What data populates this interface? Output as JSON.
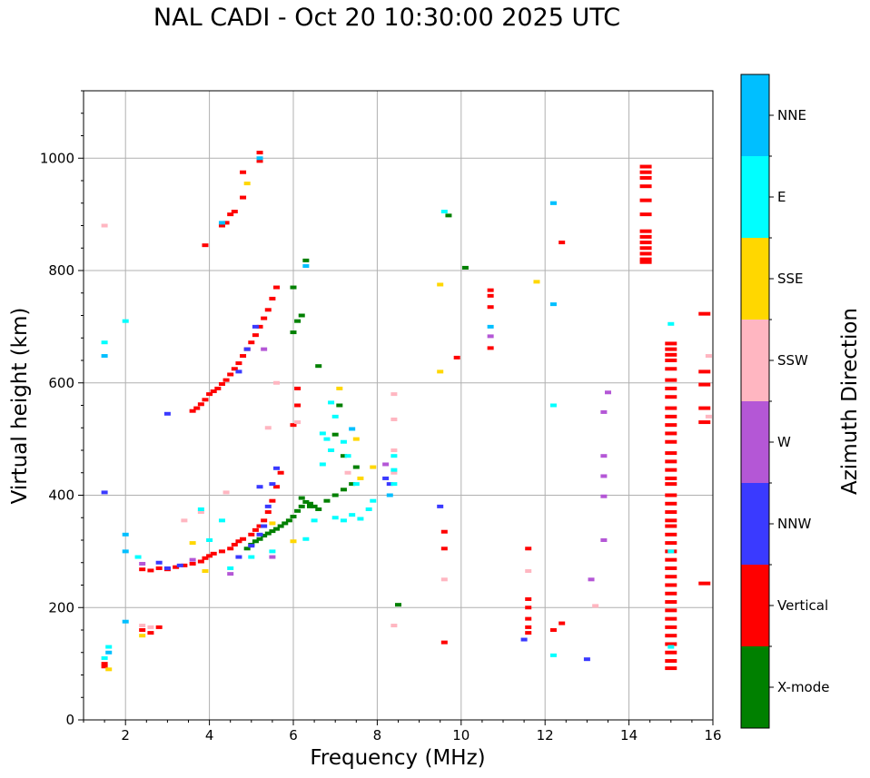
{
  "chart_data": {
    "type": "scatter",
    "title": "NAL CADI - Oct 20 10:30:00 2025 UTC",
    "xlabel": "Frequency (MHz)",
    "ylabel": "Virtual height (km)",
    "xlim": [
      1,
      16
    ],
    "ylim": [
      0,
      1120
    ],
    "x_ticks": [
      2,
      4,
      6,
      8,
      10,
      12,
      14,
      16
    ],
    "y_ticks": [
      0,
      200,
      400,
      600,
      800,
      1000
    ],
    "grid": true,
    "colorbar": {
      "label": "Azimuth Direction",
      "position": "right",
      "categories": [
        "X-mode",
        "Vertical",
        "NNW",
        "W",
        "SSW",
        "SSE",
        "E",
        "NNE"
      ],
      "colors": [
        "#008000",
        "#ff0000",
        "#3a3aff",
        "#b457d6",
        "#ffb6c1",
        "#ffd700",
        "#00ffff",
        "#00bfff"
      ]
    },
    "series": [
      {
        "name": "Vertical",
        "color": "#ff0000",
        "points": [
          [
            2.4,
            268
          ],
          [
            2.6,
            266
          ],
          [
            2.8,
            270
          ],
          [
            3.0,
            268
          ],
          [
            3.2,
            272
          ],
          [
            3.4,
            275
          ],
          [
            3.6,
            278
          ],
          [
            3.8,
            282
          ],
          [
            3.9,
            288
          ],
          [
            4.0,
            292
          ],
          [
            4.1,
            296
          ],
          [
            4.3,
            300
          ],
          [
            4.5,
            305
          ],
          [
            4.6,
            312
          ],
          [
            4.7,
            318
          ],
          [
            4.8,
            322
          ],
          [
            5.0,
            330
          ],
          [
            5.1,
            338
          ],
          [
            5.2,
            345
          ],
          [
            5.3,
            355
          ],
          [
            5.4,
            370
          ],
          [
            5.5,
            390
          ],
          [
            5.6,
            415
          ],
          [
            5.7,
            440
          ],
          [
            3.6,
            550
          ],
          [
            3.7,
            555
          ],
          [
            3.8,
            562
          ],
          [
            3.9,
            570
          ],
          [
            4.0,
            580
          ],
          [
            4.1,
            585
          ],
          [
            4.2,
            590
          ],
          [
            4.3,
            598
          ],
          [
            4.4,
            605
          ],
          [
            4.5,
            615
          ],
          [
            4.6,
            625
          ],
          [
            4.7,
            635
          ],
          [
            4.8,
            648
          ],
          [
            4.9,
            660
          ],
          [
            5.0,
            672
          ],
          [
            5.1,
            685
          ],
          [
            5.2,
            700
          ],
          [
            5.3,
            715
          ],
          [
            5.4,
            730
          ],
          [
            5.5,
            750
          ],
          [
            5.6,
            770
          ],
          [
            3.9,
            845
          ],
          [
            4.3,
            880
          ],
          [
            4.4,
            885
          ],
          [
            4.5,
            900
          ],
          [
            4.6,
            905
          ],
          [
            4.8,
            930
          ],
          [
            4.8,
            975
          ],
          [
            5.2,
            995
          ],
          [
            5.2,
            1010
          ],
          [
            1.5,
            100
          ],
          [
            1.5,
            95
          ],
          [
            2.4,
            160
          ],
          [
            2.6,
            155
          ],
          [
            2.8,
            165
          ],
          [
            11.6,
            305
          ],
          [
            11.6,
            215
          ],
          [
            11.6,
            200
          ],
          [
            11.6,
            180
          ],
          [
            11.6,
            165
          ],
          [
            11.6,
            155
          ],
          [
            12.2,
            160
          ],
          [
            12.4,
            172
          ],
          [
            10.7,
            765
          ],
          [
            10.7,
            755
          ],
          [
            10.7,
            735
          ],
          [
            10.7,
            662
          ],
          [
            9.6,
            335
          ],
          [
            9.6,
            305
          ],
          [
            9.6,
            138
          ],
          [
            9.9,
            645
          ],
          [
            12.4,
            850
          ],
          [
            6.1,
            590
          ],
          [
            6.1,
            560
          ],
          [
            6.0,
            525
          ],
          [
            14.4,
            985
          ],
          [
            14.4,
            975
          ],
          [
            14.4,
            965
          ],
          [
            14.4,
            950
          ],
          [
            14.4,
            925
          ],
          [
            14.4,
            900
          ],
          [
            14.4,
            870
          ],
          [
            14.4,
            860
          ],
          [
            14.4,
            850
          ],
          [
            14.4,
            840
          ],
          [
            14.4,
            830
          ],
          [
            14.4,
            820
          ],
          [
            14.4,
            815
          ],
          [
            15.0,
            670
          ],
          [
            15.0,
            660
          ],
          [
            15.0,
            650
          ],
          [
            15.0,
            640
          ],
          [
            15.0,
            625
          ],
          [
            15.0,
            605
          ],
          [
            15.0,
            590
          ],
          [
            15.0,
            575
          ],
          [
            15.0,
            555
          ],
          [
            15.0,
            540
          ],
          [
            15.0,
            525
          ],
          [
            15.0,
            510
          ],
          [
            15.0,
            495
          ],
          [
            15.0,
            475
          ],
          [
            15.0,
            460
          ],
          [
            15.0,
            445
          ],
          [
            15.0,
            430
          ],
          [
            15.0,
            420
          ],
          [
            15.0,
            400
          ],
          [
            15.0,
            385
          ],
          [
            15.0,
            370
          ],
          [
            15.0,
            355
          ],
          [
            15.0,
            345
          ],
          [
            15.0,
            330
          ],
          [
            15.0,
            315
          ],
          [
            15.0,
            300
          ],
          [
            15.0,
            285
          ],
          [
            15.0,
            270
          ],
          [
            15.0,
            255
          ],
          [
            15.0,
            240
          ],
          [
            15.0,
            225
          ],
          [
            15.0,
            210
          ],
          [
            15.0,
            195
          ],
          [
            15.0,
            180
          ],
          [
            15.0,
            165
          ],
          [
            15.0,
            150
          ],
          [
            15.0,
            135
          ],
          [
            15.0,
            120
          ],
          [
            15.0,
            105
          ],
          [
            15.0,
            92
          ],
          [
            15.8,
            723
          ],
          [
            15.8,
            620
          ],
          [
            15.8,
            597
          ],
          [
            15.8,
            555
          ],
          [
            15.8,
            530
          ],
          [
            15.8,
            243
          ]
        ]
      },
      {
        "name": "X-mode",
        "color": "#008000",
        "points": [
          [
            4.9,
            305
          ],
          [
            5.0,
            312
          ],
          [
            5.1,
            318
          ],
          [
            5.2,
            322
          ],
          [
            5.3,
            328
          ],
          [
            5.4,
            332
          ],
          [
            5.5,
            336
          ],
          [
            5.6,
            340
          ],
          [
            5.7,
            345
          ],
          [
            5.8,
            350
          ],
          [
            5.9,
            355
          ],
          [
            6.0,
            362
          ],
          [
            6.1,
            372
          ],
          [
            6.2,
            380
          ],
          [
            6.3,
            388
          ],
          [
            6.4,
            385
          ],
          [
            6.5,
            380
          ],
          [
            6.6,
            375
          ],
          [
            6.8,
            390
          ],
          [
            7.0,
            400
          ],
          [
            7.2,
            410
          ],
          [
            7.4,
            420
          ],
          [
            6.0,
            690
          ],
          [
            6.1,
            710
          ],
          [
            6.2,
            720
          ],
          [
            6.0,
            770
          ],
          [
            6.3,
            818
          ],
          [
            6.6,
            630
          ],
          [
            7.0,
            508
          ],
          [
            7.2,
            470
          ],
          [
            7.5,
            450
          ],
          [
            7.1,
            560
          ],
          [
            8.5,
            205
          ],
          [
            9.7,
            898
          ],
          [
            10.1,
            805
          ],
          [
            6.4,
            380
          ],
          [
            6.2,
            395
          ]
        ]
      },
      {
        "name": "NNW",
        "color": "#3a3aff",
        "points": [
          [
            1.5,
            405
          ],
          [
            2.8,
            280
          ],
          [
            3.0,
            270
          ],
          [
            3.3,
            275
          ],
          [
            4.7,
            290
          ],
          [
            5.0,
            310
          ],
          [
            5.2,
            330
          ],
          [
            5.3,
            345
          ],
          [
            5.4,
            380
          ],
          [
            5.5,
            420
          ],
          [
            5.6,
            448
          ],
          [
            5.2,
            415
          ],
          [
            3.0,
            545
          ],
          [
            4.7,
            620
          ],
          [
            4.9,
            660
          ],
          [
            5.1,
            700
          ],
          [
            9.5,
            380
          ],
          [
            13.0,
            108
          ],
          [
            11.5,
            143
          ],
          [
            8.2,
            430
          ],
          [
            8.3,
            420
          ]
        ]
      },
      {
        "name": "W",
        "color": "#b457d6",
        "points": [
          [
            2.4,
            278
          ],
          [
            3.6,
            285
          ],
          [
            4.5,
            260
          ],
          [
            5.5,
            290
          ],
          [
            13.5,
            583
          ],
          [
            13.4,
            548
          ],
          [
            13.4,
            470
          ],
          [
            13.4,
            434
          ],
          [
            13.4,
            398
          ],
          [
            13.4,
            320
          ],
          [
            13.1,
            250
          ],
          [
            8.2,
            455
          ],
          [
            10.7,
            683
          ],
          [
            5.3,
            660
          ]
        ]
      },
      {
        "name": "SSW",
        "color": "#ffb6c1",
        "points": [
          [
            1.5,
            880
          ],
          [
            2.4,
            168
          ],
          [
            2.6,
            165
          ],
          [
            3.4,
            355
          ],
          [
            3.8,
            370
          ],
          [
            4.4,
            405
          ],
          [
            5.4,
            520
          ],
          [
            5.6,
            600
          ],
          [
            6.1,
            530
          ],
          [
            8.4,
            580
          ],
          [
            8.4,
            535
          ],
          [
            8.4,
            480
          ],
          [
            8.4,
            440
          ],
          [
            8.4,
            168
          ],
          [
            9.6,
            250
          ],
          [
            11.6,
            265
          ],
          [
            13.2,
            203
          ],
          [
            15.9,
            648
          ],
          [
            15.9,
            540
          ],
          [
            7.3,
            440
          ]
        ]
      },
      {
        "name": "SSE",
        "color": "#ffd700",
        "points": [
          [
            1.6,
            90
          ],
          [
            2.4,
            150
          ],
          [
            3.6,
            315
          ],
          [
            3.9,
            265
          ],
          [
            4.9,
            955
          ],
          [
            5.5,
            350
          ],
          [
            6.0,
            318
          ],
          [
            7.1,
            590
          ],
          [
            7.5,
            500
          ],
          [
            7.6,
            430
          ],
          [
            9.5,
            775
          ],
          [
            9.5,
            620
          ],
          [
            11.8,
            780
          ],
          [
            7.9,
            450
          ]
        ]
      },
      {
        "name": "E",
        "color": "#00ffff",
        "points": [
          [
            1.5,
            672
          ],
          [
            1.5,
            110
          ],
          [
            1.6,
            130
          ],
          [
            2.0,
            710
          ],
          [
            2.3,
            290
          ],
          [
            3.8,
            375
          ],
          [
            4.0,
            320
          ],
          [
            4.3,
            355
          ],
          [
            4.5,
            270
          ],
          [
            5.0,
            290
          ],
          [
            5.5,
            300
          ],
          [
            6.3,
            322
          ],
          [
            6.5,
            355
          ],
          [
            6.7,
            455
          ],
          [
            6.8,
            500
          ],
          [
            6.9,
            480
          ],
          [
            7.0,
            360
          ],
          [
            7.2,
            355
          ],
          [
            7.4,
            365
          ],
          [
            7.6,
            358
          ],
          [
            7.8,
            375
          ],
          [
            7.9,
            390
          ],
          [
            7.5,
            420
          ],
          [
            7.3,
            470
          ],
          [
            6.9,
            565
          ],
          [
            6.7,
            510
          ],
          [
            7.0,
            540
          ],
          [
            7.2,
            495
          ],
          [
            8.4,
            470
          ],
          [
            8.4,
            445
          ],
          [
            8.4,
            420
          ],
          [
            9.6,
            905
          ],
          [
            12.2,
            115
          ],
          [
            12.2,
            560
          ],
          [
            12.2,
            920
          ],
          [
            15.0,
            705
          ],
          [
            15.0,
            300
          ],
          [
            15.0,
            130
          ]
        ]
      },
      {
        "name": "NNE",
        "color": "#00bfff",
        "points": [
          [
            1.5,
            648
          ],
          [
            1.6,
            120
          ],
          [
            2.0,
            330
          ],
          [
            2.0,
            300
          ],
          [
            2.0,
            175
          ],
          [
            4.3,
            885
          ],
          [
            5.2,
            1000
          ],
          [
            6.3,
            808
          ],
          [
            7.4,
            518
          ],
          [
            8.3,
            400
          ],
          [
            10.7,
            700
          ],
          [
            12.2,
            740
          ],
          [
            12.2,
            920
          ]
        ]
      }
    ]
  }
}
